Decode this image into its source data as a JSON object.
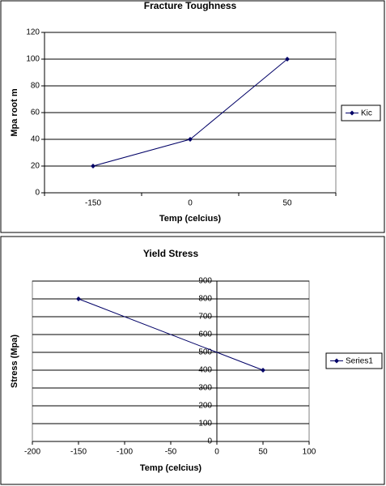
{
  "chart_data": [
    {
      "type": "line",
      "title": "Fracture Toughness",
      "x_label": "Temp (celcius)",
      "y_label": "Mpa root m",
      "categories": [
        "-150",
        "0",
        "50"
      ],
      "series": [
        {
          "name": "Kic",
          "color": "#000066",
          "values": [
            20,
            40,
            100
          ]
        }
      ],
      "ylim": [
        0,
        120
      ],
      "yticks": [
        0,
        20,
        40,
        60,
        80,
        100,
        120
      ],
      "grid": true,
      "legend": "right"
    },
    {
      "type": "scatter",
      "title": "Yield Stress",
      "x_label": "Temp (celcius)",
      "y_label": "Stress (Mpa)",
      "series": [
        {
          "name": "Series1",
          "color": "#000066",
          "x": [
            -150,
            50
          ],
          "values": [
            800,
            400
          ]
        }
      ],
      "xlim": [
        -200,
        100
      ],
      "xticks": [
        -200,
        -150,
        -100,
        -50,
        0,
        50,
        100
      ],
      "ylim": [
        0,
        900
      ],
      "yticks": [
        0,
        100,
        200,
        300,
        400,
        500,
        600,
        700,
        800,
        900
      ],
      "grid": true,
      "legend": "right"
    }
  ]
}
